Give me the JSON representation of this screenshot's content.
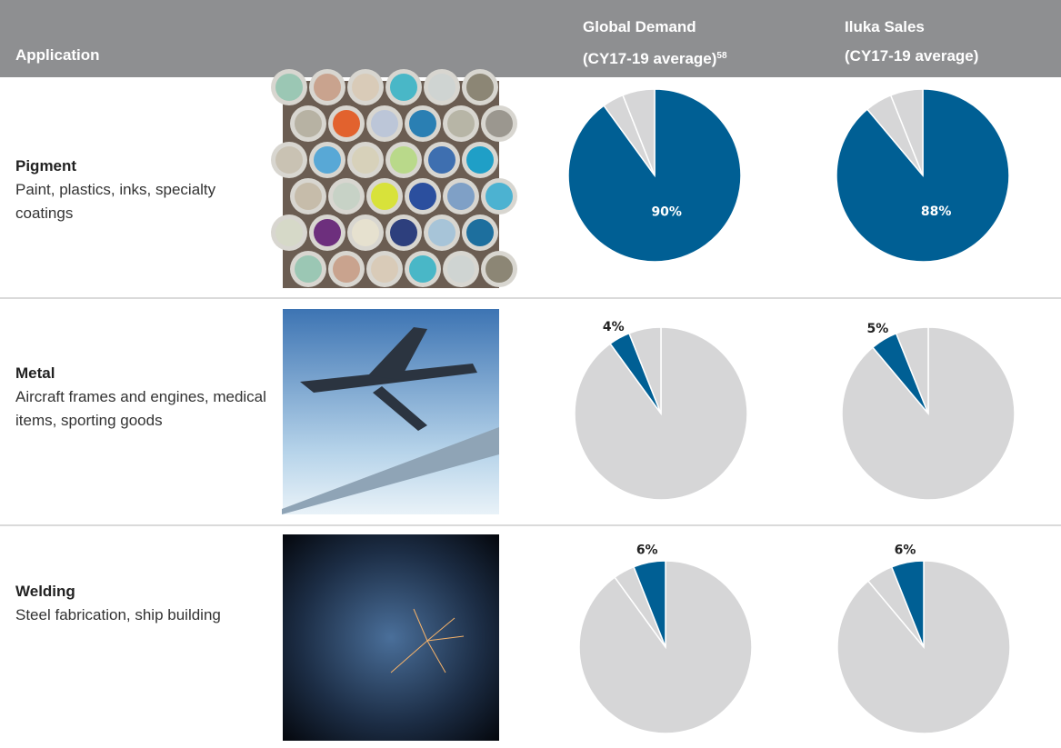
{
  "header": {
    "application": "Application",
    "columns": [
      {
        "title": "Global Demand",
        "subtitle": "(CY17-19 average)",
        "note": "58"
      },
      {
        "title": "Iluka Sales",
        "subtitle": "(CY17-19 average)"
      }
    ]
  },
  "shares": [
    {
      "values": [
        90,
        4,
        6
      ],
      "value_labels": [
        "90%",
        "4%",
        "6%"
      ]
    },
    {
      "values": [
        88,
        5,
        6
      ],
      "value_labels": [
        "88%",
        "5%",
        "6%"
      ]
    }
  ],
  "table": {
    "rows": [
      {
        "name": "Pigment",
        "description": "Paint, plastics, inks, specialty coatings"
      },
      {
        "name": "Metal",
        "description": "Aircraft frames and engines, medical items, sporting goods"
      },
      {
        "name": "Welding",
        "description": "Steel fabrication, ship building"
      }
    ]
  }
}
